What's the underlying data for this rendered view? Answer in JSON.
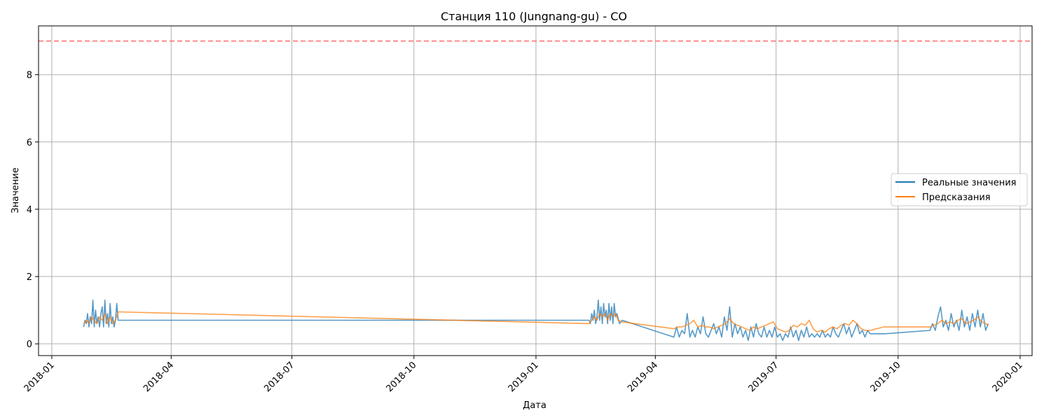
{
  "chart_data": {
    "type": "line",
    "title": "Станция 110 (Jungnang-gu) - CO",
    "xlabel": "Дата",
    "ylabel": "Значение",
    "x_type": "date",
    "xlim": [
      "2017-12-22",
      "2020-01-10"
    ],
    "ylim": [
      -0.35,
      9.45
    ],
    "x_ticks": [
      "2018-01",
      "2018-04",
      "2018-07",
      "2018-10",
      "2019-01",
      "2019-04",
      "2019-07",
      "2019-10",
      "2020-01"
    ],
    "y_ticks": [
      0,
      2,
      4,
      6,
      8
    ],
    "grid": true,
    "legend_position": "center-right",
    "threshold": {
      "value": 9.0,
      "color": "#ff6b6b",
      "style": "dashed"
    },
    "series": [
      {
        "name": "Реальные значения",
        "color": "#1f77b4",
        "points": [
          [
            "2018-01-25",
            0.5
          ],
          [
            "2018-01-26",
            0.7
          ],
          [
            "2018-01-27",
            0.6
          ],
          [
            "2018-01-28",
            0.9
          ],
          [
            "2018-01-29",
            0.5
          ],
          [
            "2018-01-30",
            0.8
          ],
          [
            "2018-01-31",
            0.6
          ],
          [
            "2018-02-01",
            1.3
          ],
          [
            "2018-02-02",
            0.5
          ],
          [
            "2018-02-03",
            1.0
          ],
          [
            "2018-02-04",
            0.6
          ],
          [
            "2018-02-05",
            0.8
          ],
          [
            "2018-02-06",
            0.5
          ],
          [
            "2018-02-07",
            0.9
          ],
          [
            "2018-02-08",
            1.1
          ],
          [
            "2018-02-09",
            0.5
          ],
          [
            "2018-02-10",
            1.3
          ],
          [
            "2018-02-11",
            0.6
          ],
          [
            "2018-02-12",
            0.9
          ],
          [
            "2018-02-13",
            0.5
          ],
          [
            "2018-02-14",
            1.2
          ],
          [
            "2018-02-15",
            0.6
          ],
          [
            "2018-02-16",
            0.8
          ],
          [
            "2018-02-17",
            0.5
          ],
          [
            "2018-02-18",
            0.7
          ],
          [
            "2018-02-19",
            1.2
          ],
          [
            "2018-02-20",
            0.7
          ],
          [
            "2019-02-10",
            0.7
          ],
          [
            "2019-02-11",
            0.6
          ],
          [
            "2019-02-12",
            0.9
          ],
          [
            "2019-02-13",
            0.7
          ],
          [
            "2019-02-14",
            1.0
          ],
          [
            "2019-02-15",
            0.6
          ],
          [
            "2019-02-16",
            0.8
          ],
          [
            "2019-02-17",
            1.3
          ],
          [
            "2019-02-18",
            0.7
          ],
          [
            "2019-02-19",
            1.1
          ],
          [
            "2019-02-20",
            0.6
          ],
          [
            "2019-02-21",
            1.2
          ],
          [
            "2019-02-22",
            0.8
          ],
          [
            "2019-02-23",
            1.0
          ],
          [
            "2019-02-24",
            0.6
          ],
          [
            "2019-02-25",
            1.2
          ],
          [
            "2019-02-26",
            0.7
          ],
          [
            "2019-02-27",
            1.1
          ],
          [
            "2019-02-28",
            0.6
          ],
          [
            "2019-03-01",
            1.2
          ],
          [
            "2019-03-02",
            0.8
          ],
          [
            "2019-03-03",
            0.9
          ],
          [
            "2019-03-05",
            0.6
          ],
          [
            "2019-03-07",
            0.7
          ],
          [
            "2019-04-15",
            0.2
          ],
          [
            "2019-04-17",
            0.5
          ],
          [
            "2019-04-19",
            0.2
          ],
          [
            "2019-04-21",
            0.4
          ],
          [
            "2019-04-23",
            0.3
          ],
          [
            "2019-04-25",
            0.9
          ],
          [
            "2019-04-27",
            0.2
          ],
          [
            "2019-04-29",
            0.4
          ],
          [
            "2019-05-01",
            0.2
          ],
          [
            "2019-05-03",
            0.5
          ],
          [
            "2019-05-05",
            0.3
          ],
          [
            "2019-05-07",
            0.8
          ],
          [
            "2019-05-09",
            0.3
          ],
          [
            "2019-05-11",
            0.2
          ],
          [
            "2019-05-13",
            0.4
          ],
          [
            "2019-05-15",
            0.6
          ],
          [
            "2019-05-17",
            0.3
          ],
          [
            "2019-05-19",
            0.5
          ],
          [
            "2019-05-21",
            0.2
          ],
          [
            "2019-05-23",
            0.8
          ],
          [
            "2019-05-25",
            0.4
          ],
          [
            "2019-05-27",
            1.1
          ],
          [
            "2019-05-29",
            0.2
          ],
          [
            "2019-05-31",
            0.6
          ],
          [
            "2019-06-02",
            0.3
          ],
          [
            "2019-06-04",
            0.5
          ],
          [
            "2019-06-06",
            0.2
          ],
          [
            "2019-06-08",
            0.4
          ],
          [
            "2019-06-10",
            0.1
          ],
          [
            "2019-06-12",
            0.5
          ],
          [
            "2019-06-14",
            0.2
          ],
          [
            "2019-06-16",
            0.6
          ],
          [
            "2019-06-18",
            0.3
          ],
          [
            "2019-06-20",
            0.2
          ],
          [
            "2019-06-22",
            0.5
          ],
          [
            "2019-06-24",
            0.2
          ],
          [
            "2019-06-26",
            0.4
          ],
          [
            "2019-06-28",
            0.2
          ],
          [
            "2019-06-30",
            0.5
          ],
          [
            "2019-07-02",
            0.2
          ],
          [
            "2019-07-04",
            0.3
          ],
          [
            "2019-07-06",
            0.1
          ],
          [
            "2019-07-08",
            0.3
          ],
          [
            "2019-07-10",
            0.2
          ],
          [
            "2019-07-12",
            0.5
          ],
          [
            "2019-07-14",
            0.2
          ],
          [
            "2019-07-16",
            0.4
          ],
          [
            "2019-07-18",
            0.1
          ],
          [
            "2019-07-20",
            0.4
          ],
          [
            "2019-07-22",
            0.2
          ],
          [
            "2019-07-24",
            0.5
          ],
          [
            "2019-07-26",
            0.2
          ],
          [
            "2019-07-28",
            0.3
          ],
          [
            "2019-07-30",
            0.2
          ],
          [
            "2019-08-01",
            0.3
          ],
          [
            "2019-08-03",
            0.2
          ],
          [
            "2019-08-05",
            0.4
          ],
          [
            "2019-08-07",
            0.2
          ],
          [
            "2019-08-09",
            0.3
          ],
          [
            "2019-08-11",
            0.2
          ],
          [
            "2019-08-13",
            0.5
          ],
          [
            "2019-08-15",
            0.3
          ],
          [
            "2019-08-17",
            0.2
          ],
          [
            "2019-08-19",
            0.4
          ],
          [
            "2019-08-21",
            0.6
          ],
          [
            "2019-08-23",
            0.3
          ],
          [
            "2019-08-25",
            0.5
          ],
          [
            "2019-08-27",
            0.2
          ],
          [
            "2019-08-29",
            0.4
          ],
          [
            "2019-08-31",
            0.6
          ],
          [
            "2019-09-02",
            0.3
          ],
          [
            "2019-09-04",
            0.4
          ],
          [
            "2019-09-06",
            0.2
          ],
          [
            "2019-09-08",
            0.4
          ],
          [
            "2019-09-10",
            0.3
          ],
          [
            "2019-09-20",
            0.3
          ],
          [
            "2019-09-21",
            0.3
          ],
          [
            "2019-10-25",
            0.4
          ],
          [
            "2019-10-27",
            0.6
          ],
          [
            "2019-10-29",
            0.4
          ],
          [
            "2019-10-31",
            0.8
          ],
          [
            "2019-11-02",
            1.1
          ],
          [
            "2019-11-04",
            0.5
          ],
          [
            "2019-11-06",
            0.7
          ],
          [
            "2019-11-08",
            0.4
          ],
          [
            "2019-11-10",
            0.9
          ],
          [
            "2019-11-12",
            0.5
          ],
          [
            "2019-11-14",
            0.7
          ],
          [
            "2019-11-16",
            0.4
          ],
          [
            "2019-11-18",
            1.0
          ],
          [
            "2019-11-20",
            0.5
          ],
          [
            "2019-11-22",
            0.8
          ],
          [
            "2019-11-24",
            0.4
          ],
          [
            "2019-11-26",
            0.9
          ],
          [
            "2019-11-28",
            0.5
          ],
          [
            "2019-11-30",
            1.0
          ],
          [
            "2019-12-02",
            0.5
          ],
          [
            "2019-12-04",
            0.9
          ],
          [
            "2019-12-06",
            0.4
          ],
          [
            "2019-12-08",
            0.6
          ]
        ]
      },
      {
        "name": "Предсказания",
        "color": "#ff7f0e",
        "points": [
          [
            "2018-01-25",
            0.6
          ],
          [
            "2018-01-27",
            0.7
          ],
          [
            "2018-01-29",
            0.6
          ],
          [
            "2018-01-31",
            0.8
          ],
          [
            "2018-02-02",
            0.7
          ],
          [
            "2018-02-04",
            0.6
          ],
          [
            "2018-02-06",
            0.8
          ],
          [
            "2018-02-08",
            0.7
          ],
          [
            "2018-02-10",
            0.9
          ],
          [
            "2018-02-12",
            0.6
          ],
          [
            "2018-02-14",
            0.8
          ],
          [
            "2018-02-16",
            0.6
          ],
          [
            "2018-02-18",
            0.7
          ],
          [
            "2018-02-20",
            0.95
          ],
          [
            "2019-02-10",
            0.6
          ],
          [
            "2019-02-12",
            0.7
          ],
          [
            "2019-02-14",
            0.8
          ],
          [
            "2019-02-16",
            0.7
          ],
          [
            "2019-02-18",
            0.9
          ],
          [
            "2019-02-20",
            0.8
          ],
          [
            "2019-02-22",
            0.9
          ],
          [
            "2019-02-24",
            0.7
          ],
          [
            "2019-02-26",
            0.9
          ],
          [
            "2019-02-28",
            0.8
          ],
          [
            "2019-03-02",
            0.9
          ],
          [
            "2019-03-04",
            0.7
          ],
          [
            "2019-03-07",
            0.65
          ],
          [
            "2019-04-15",
            0.45
          ],
          [
            "2019-04-18",
            0.5
          ],
          [
            "2019-04-21",
            0.5
          ],
          [
            "2019-04-24",
            0.55
          ],
          [
            "2019-04-27",
            0.6
          ],
          [
            "2019-04-30",
            0.7
          ],
          [
            "2019-05-03",
            0.5
          ],
          [
            "2019-05-06",
            0.55
          ],
          [
            "2019-05-09",
            0.5
          ],
          [
            "2019-05-12",
            0.5
          ],
          [
            "2019-05-15",
            0.45
          ],
          [
            "2019-05-18",
            0.5
          ],
          [
            "2019-05-21",
            0.55
          ],
          [
            "2019-05-24",
            0.6
          ],
          [
            "2019-05-27",
            0.75
          ],
          [
            "2019-05-30",
            0.6
          ],
          [
            "2019-06-02",
            0.55
          ],
          [
            "2019-06-05",
            0.5
          ],
          [
            "2019-06-08",
            0.45
          ],
          [
            "2019-06-11",
            0.4
          ],
          [
            "2019-06-14",
            0.5
          ],
          [
            "2019-06-17",
            0.45
          ],
          [
            "2019-06-20",
            0.5
          ],
          [
            "2019-06-23",
            0.55
          ],
          [
            "2019-06-26",
            0.6
          ],
          [
            "2019-06-29",
            0.65
          ],
          [
            "2019-07-02",
            0.45
          ],
          [
            "2019-07-05",
            0.4
          ],
          [
            "2019-07-08",
            0.35
          ],
          [
            "2019-07-11",
            0.4
          ],
          [
            "2019-07-14",
            0.55
          ],
          [
            "2019-07-17",
            0.5
          ],
          [
            "2019-07-20",
            0.6
          ],
          [
            "2019-07-23",
            0.55
          ],
          [
            "2019-07-26",
            0.7
          ],
          [
            "2019-07-29",
            0.45
          ],
          [
            "2019-08-01",
            0.35
          ],
          [
            "2019-08-04",
            0.4
          ],
          [
            "2019-08-07",
            0.35
          ],
          [
            "2019-08-10",
            0.45
          ],
          [
            "2019-08-13",
            0.5
          ],
          [
            "2019-08-16",
            0.45
          ],
          [
            "2019-08-19",
            0.55
          ],
          [
            "2019-08-22",
            0.6
          ],
          [
            "2019-08-25",
            0.55
          ],
          [
            "2019-08-28",
            0.7
          ],
          [
            "2019-08-31",
            0.6
          ],
          [
            "2019-09-03",
            0.45
          ],
          [
            "2019-09-06",
            0.4
          ],
          [
            "2019-09-10",
            0.4
          ],
          [
            "2019-09-20",
            0.5
          ],
          [
            "2019-10-25",
            0.5
          ],
          [
            "2019-10-28",
            0.55
          ],
          [
            "2019-10-31",
            0.6
          ],
          [
            "2019-11-03",
            0.7
          ],
          [
            "2019-11-06",
            0.6
          ],
          [
            "2019-11-09",
            0.65
          ],
          [
            "2019-11-12",
            0.6
          ],
          [
            "2019-11-15",
            0.7
          ],
          [
            "2019-11-18",
            0.75
          ],
          [
            "2019-11-21",
            0.6
          ],
          [
            "2019-11-24",
            0.65
          ],
          [
            "2019-11-27",
            0.7
          ],
          [
            "2019-11-30",
            0.8
          ],
          [
            "2019-12-03",
            0.65
          ],
          [
            "2019-12-06",
            0.6
          ],
          [
            "2019-12-08",
            0.55
          ]
        ]
      }
    ]
  }
}
